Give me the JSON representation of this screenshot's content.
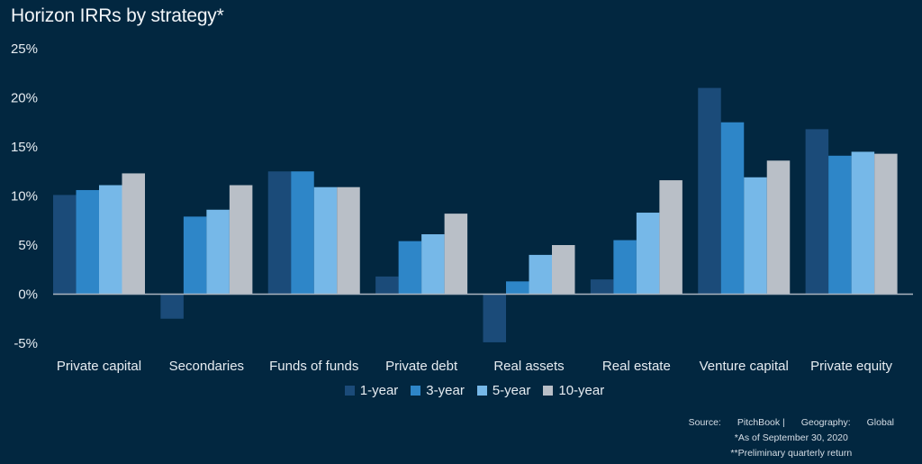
{
  "chart_data": {
    "type": "bar",
    "title": "Horizon IRRs by strategy*",
    "xlabel": "",
    "ylabel": "",
    "ylim": [
      -5,
      25
    ],
    "yticks": [
      -5,
      0,
      5,
      10,
      15,
      20,
      25
    ],
    "ytick_labels": [
      "-5%",
      "0%",
      "5%",
      "10%",
      "15%",
      "20%",
      "25%"
    ],
    "grid": false,
    "legend_position": "bottom",
    "categories": [
      "Private capital",
      "Secondaries",
      "Funds of funds",
      "Private debt",
      "Real assets",
      "Real estate",
      "Venture capital",
      "Private equity"
    ],
    "series": [
      {
        "name": "1-year",
        "color": "#1b4b79",
        "values": [
          10.1,
          -2.5,
          12.5,
          1.8,
          -4.9,
          1.5,
          21.0,
          16.8
        ]
      },
      {
        "name": "3-year",
        "color": "#2e86c8",
        "values": [
          10.6,
          7.9,
          12.5,
          5.4,
          1.3,
          5.5,
          17.5,
          14.1
        ]
      },
      {
        "name": "5-year",
        "color": "#76b8e8",
        "values": [
          11.1,
          8.6,
          10.9,
          6.1,
          4.0,
          8.3,
          11.9,
          14.5
        ]
      },
      {
        "name": "10-year",
        "color": "#b9bfc7",
        "values": [
          12.3,
          11.1,
          10.9,
          8.2,
          5.0,
          11.6,
          13.6,
          14.3
        ]
      }
    ]
  },
  "footer": {
    "source_label": "Source:",
    "source_value": "PitchBook |",
    "geography_label": "Geography:",
    "geography_value": "Global",
    "note1": "*As of September 30, 2020",
    "note2": "**Preliminary quarterly return"
  }
}
